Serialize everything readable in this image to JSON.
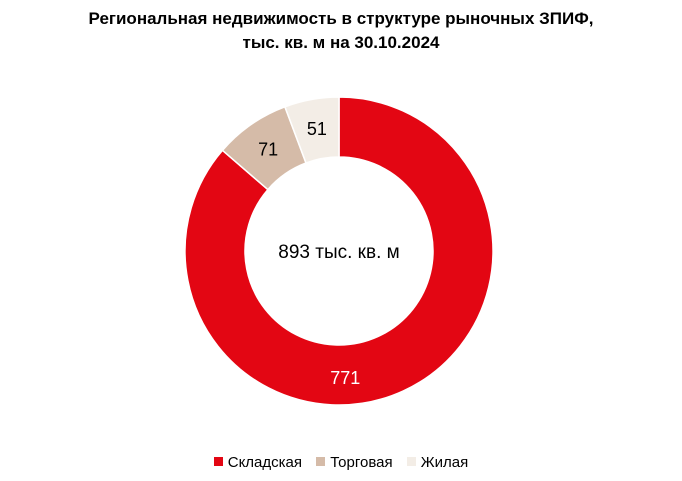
{
  "chart_data": {
    "type": "pie",
    "title_line1": "Региональная недвижимость в структуре рыночных ЗПИФ,",
    "title_line2": "тыс. кв. м на 30.10.2024",
    "center_label": "893 тыс. кв. м",
    "categories": [
      "Складская",
      "Торговая",
      "Жилая"
    ],
    "values": [
      771,
      71,
      51
    ],
    "value_labels": [
      "771",
      "71",
      "51"
    ],
    "colors": [
      "#e30613",
      "#d5bba8",
      "#f3ede6"
    ],
    "label_colors": [
      "#ffffff",
      "#000000",
      "#000000"
    ],
    "donut": true,
    "legend_position": "bottom"
  }
}
